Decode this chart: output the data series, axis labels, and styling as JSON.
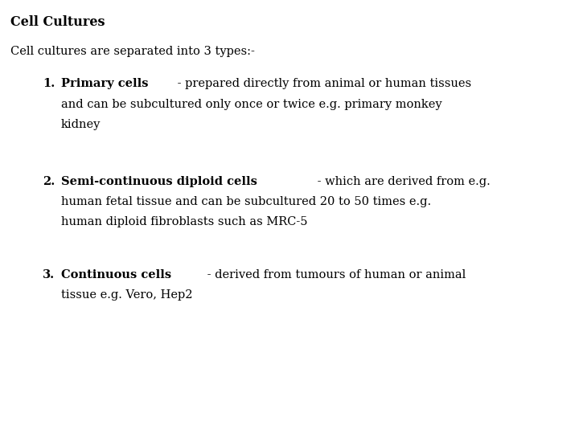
{
  "title": "Cell Cultures",
  "subtitle": "Cell cultures are separated into 3 types:-",
  "items": [
    {
      "number": "1.",
      "bold_text": "Primary cells",
      "rest_lines": [
        " - prepared directly from animal or human tissues",
        "and can be subcultured only once or twice e.g. primary monkey",
        "kidney"
      ]
    },
    {
      "number": "2.",
      "bold_text": "Semi-continuous diploid cells",
      "rest_lines": [
        " - which are derived from e.g.",
        "human fetal tissue and can be subcultured 20 to 50 times e.g.",
        "human diploid fibroblasts such as MRC-5"
      ]
    },
    {
      "number": "3.",
      "bold_text": "Continuous cells",
      "rest_lines": [
        " - derived from tumours of human or animal",
        "tissue e.g. Vero, Hep2"
      ]
    }
  ],
  "background_color": "#ffffff",
  "text_color": "#000000",
  "title_fontsize": 11.5,
  "subtitle_fontsize": 10.5,
  "body_fontsize": 10.5,
  "font_family": "DejaVu Serif"
}
